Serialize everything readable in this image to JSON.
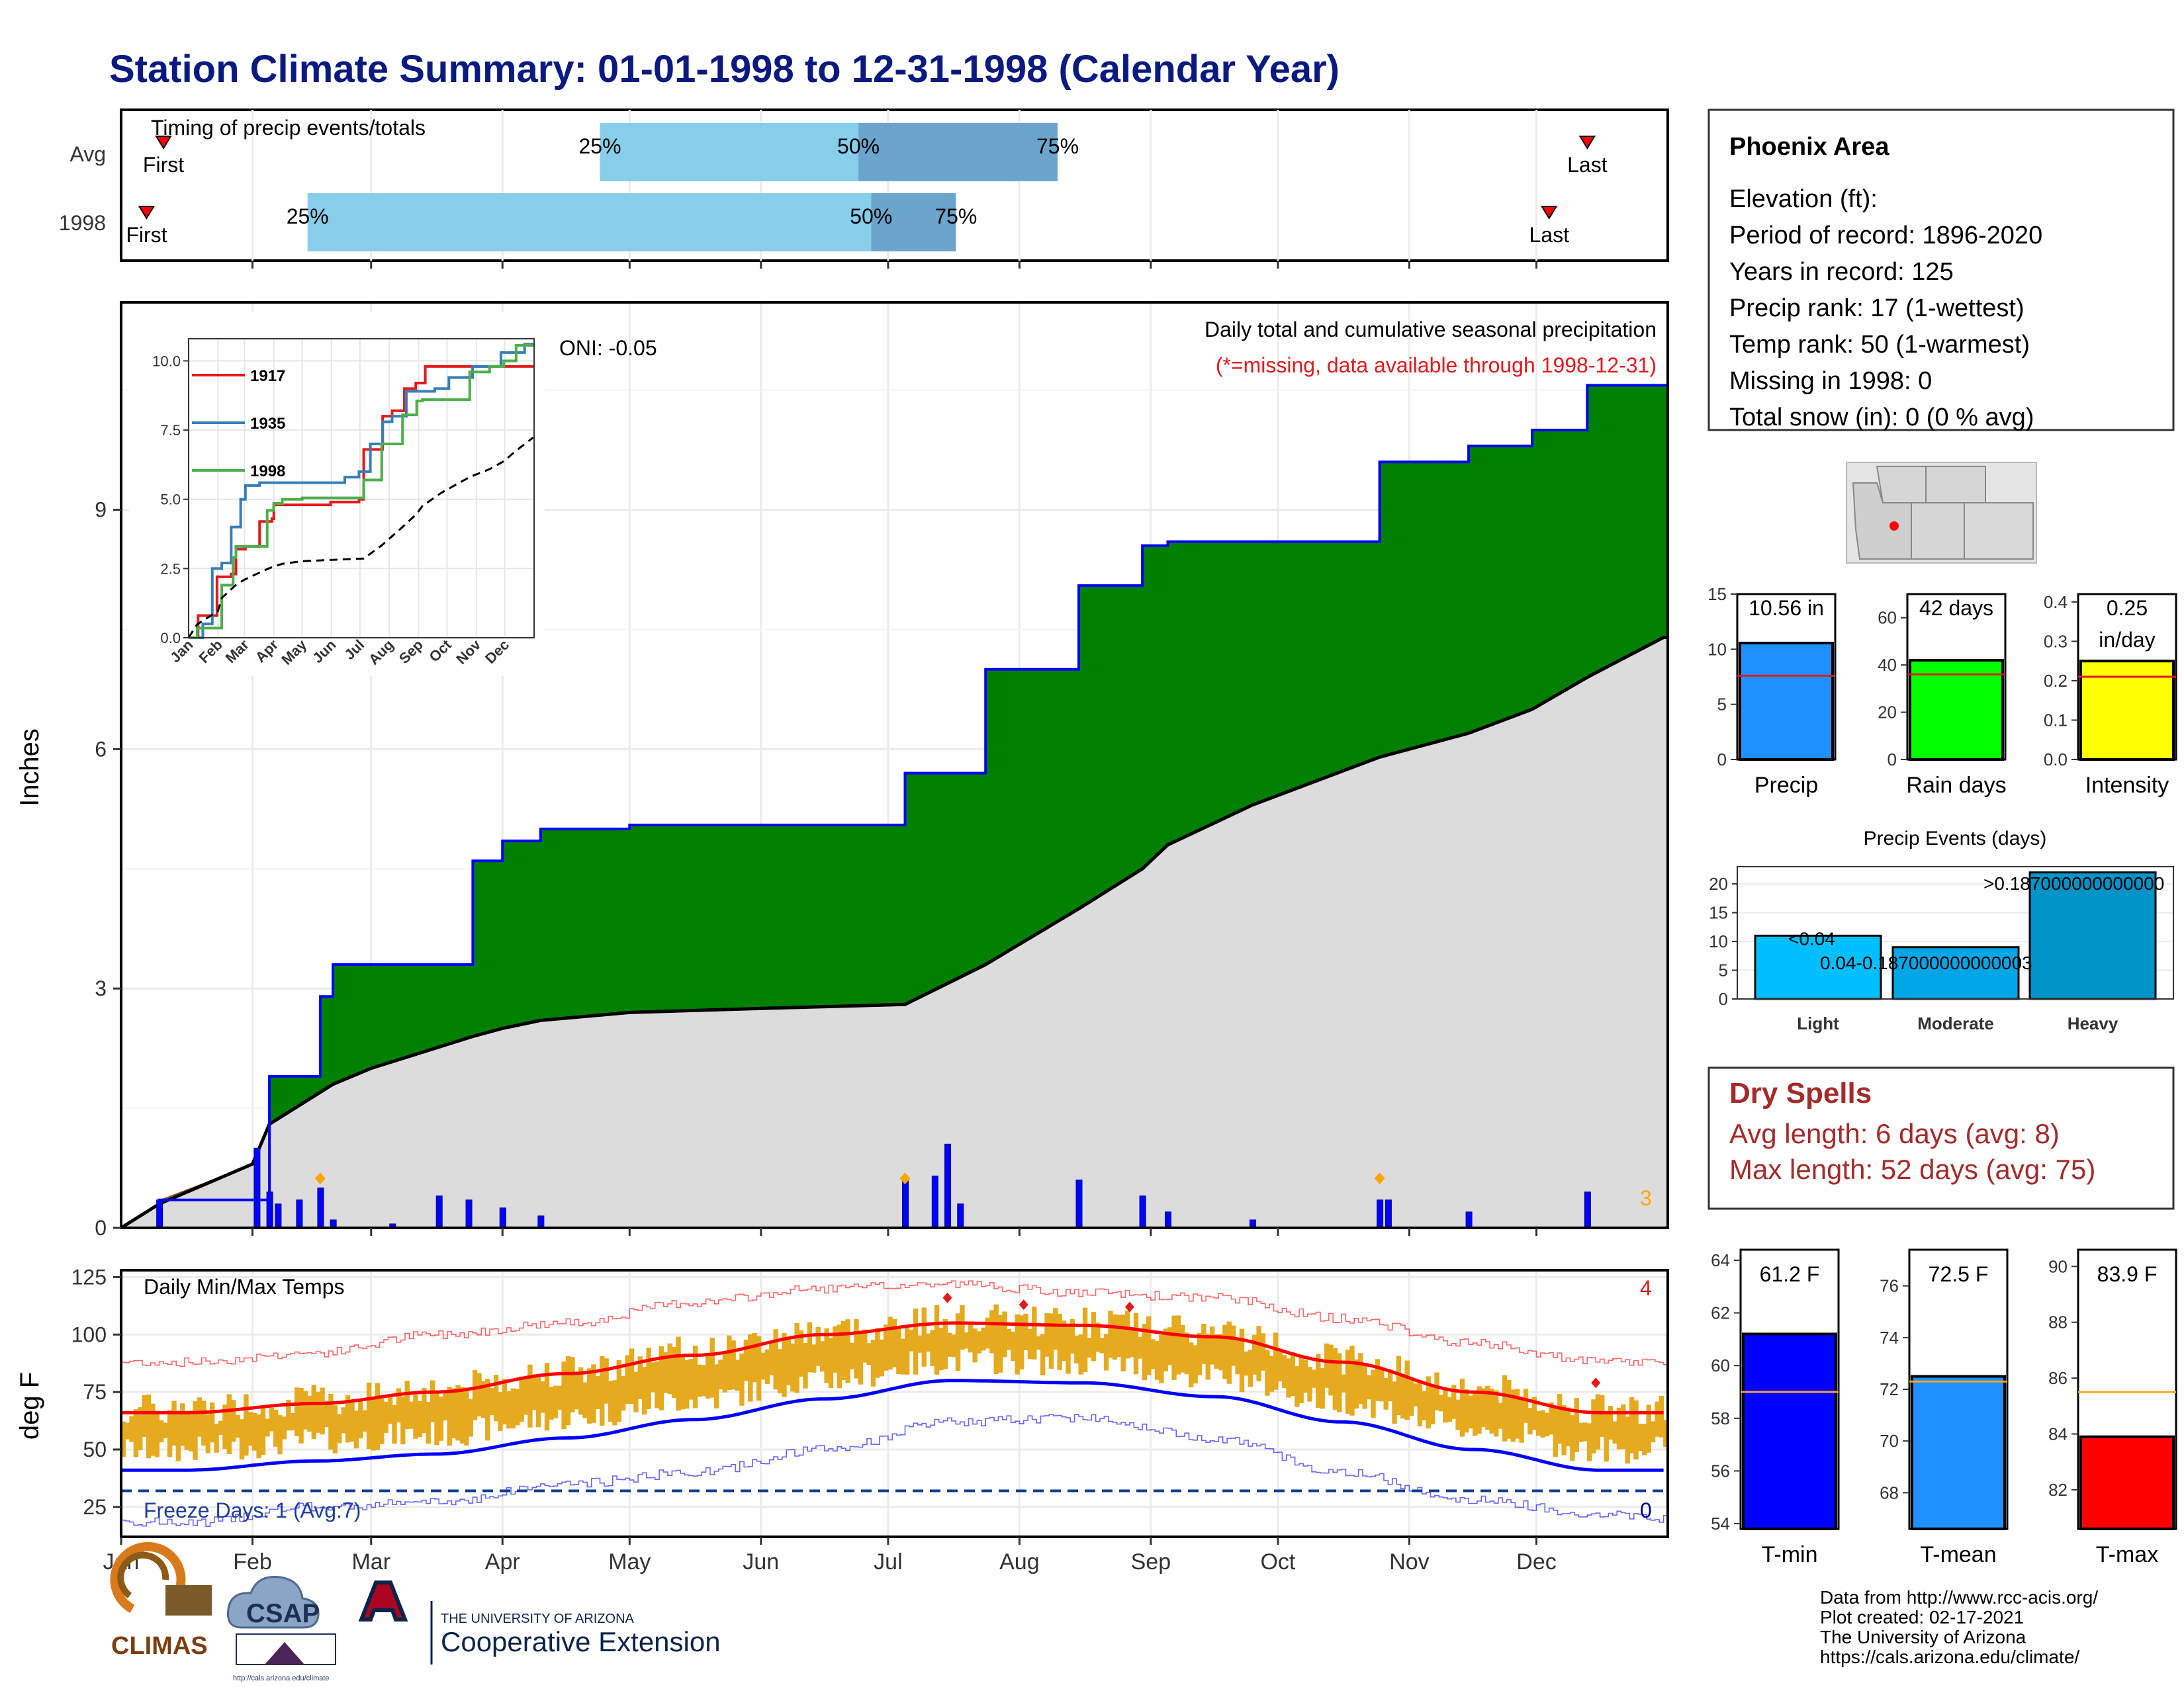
{
  "title": "Station Climate Summary: 01-01-1998 to 12-31-1998 (Calendar Year)",
  "timing": {
    "label": "Timing of precip events/totals",
    "rows": [
      {
        "name": "Avg",
        "p25": 113,
        "p50": 174,
        "p75": 221,
        "first": 10,
        "last": 346
      },
      {
        "name": "1998",
        "p25": 44,
        "p50": 177,
        "p75": 197,
        "first": 6,
        "last": 337
      }
    ],
    "pct": [
      "25%",
      "50%",
      "75%"
    ],
    "first_label": "First",
    "last_label": "Last"
  },
  "info": {
    "station": "Phoenix Area",
    "lines": [
      "Elevation (ft):",
      "Period of record: 1896-2020",
      "Years in record: 125",
      "Precip rank: 17 (1-wettest)",
      "Temp rank: 50 (1-warmest)",
      "Missing in 1998: 0",
      "Total snow (in): 0 (0 % avg)"
    ]
  },
  "precip": {
    "ylabel": "Inches",
    "yticks": [
      "0",
      "3",
      "6",
      "9"
    ],
    "header": "Daily total and cumulative seasonal precipitation",
    "missing_note": "(*=missing, data available through 1998-12-31)",
    "oni": "ONI: -0.05",
    "corner_count": "3",
    "colors": {
      "above": "#008000",
      "normal_fill": "#dcdcdc",
      "below": "#8b5a17",
      "line": "#0000ff"
    }
  },
  "inset": {
    "series": [
      "1917",
      "1935",
      "1998"
    ],
    "colors": [
      "#e31a1c",
      "#377eb8",
      "#4daf4a"
    ],
    "yticks": [
      "0.0",
      "2.5",
      "5.0",
      "7.5",
      "10.0"
    ],
    "xticks": [
      "Jan",
      "Feb",
      "Mar",
      "Apr",
      "May",
      "Jun",
      "Jul",
      "Aug",
      "Sep",
      "Oct",
      "Nov",
      "Dec"
    ]
  },
  "temps": {
    "label": "Daily Min/Max Temps",
    "ylabel": "deg F",
    "yticks": [
      "25",
      "50",
      "75",
      "100",
      "125"
    ],
    "freeze": "Freeze Days: 1 (Avg:7)",
    "count_hot": "4",
    "count_cold": "0"
  },
  "months": [
    "Jan",
    "Feb",
    "Mar",
    "Apr",
    "May",
    "Jun",
    "Jul",
    "Aug",
    "Sep",
    "Oct",
    "Nov",
    "Dec"
  ],
  "side_precip": {
    "bars": [
      {
        "name": "Precip",
        "label": "10.56 in",
        "value": 10.56,
        "avg": 7.6,
        "ymax": 15,
        "ticks": [
          "0",
          "5",
          "10",
          "15"
        ],
        "color": "#1e90ff"
      },
      {
        "name": "Rain days",
        "label": "42 days",
        "value": 42,
        "avg": 36,
        "ymax": 70,
        "ticks": [
          "0",
          "20",
          "40",
          "60"
        ],
        "color": "#00ff00"
      },
      {
        "name": "Intensity",
        "label": "0.25\nin/day",
        "value": 0.25,
        "avg": 0.21,
        "ymax": 0.42,
        "ticks": [
          "0.0",
          "0.1",
          "0.2",
          "0.3",
          "0.4"
        ],
        "color": "#ffff00"
      }
    ]
  },
  "events": {
    "title": "Precip Events (days)",
    "ticks": [
      "0",
      "5",
      "10",
      "15",
      "20"
    ],
    "bars": [
      {
        "name": "Light",
        "value": 11,
        "label": "<0.04"
      },
      {
        "name": "Moderate",
        "value": 9,
        "label": "0.04-0.187000000000003"
      },
      {
        "name": "Heavy",
        "value": 22,
        "label": ">0.187000000000000"
      }
    ]
  },
  "dry": {
    "title": "Dry Spells",
    "lines": [
      "Avg length: 6 days (avg: 8)",
      "Max length: 52 days (avg: 75)"
    ]
  },
  "side_temps": {
    "bars": [
      {
        "name": "T-min",
        "label": "61.2 F",
        "value": 61.2,
        "avg": 59.0,
        "ymin": 53.8,
        "ymax": 64.4,
        "ticks": [
          "54",
          "56",
          "58",
          "60",
          "62",
          "64"
        ],
        "color": "#0000ff"
      },
      {
        "name": "T-mean",
        "label": "72.5 F",
        "value": 72.5,
        "avg": 72.3,
        "ymin": 66.6,
        "ymax": 77.4,
        "ticks": [
          "68",
          "70",
          "72",
          "74",
          "76"
        ],
        "color": "#1e90ff"
      },
      {
        "name": "T-max",
        "label": "83.9 F",
        "value": 83.9,
        "avg": 85.5,
        "ymin": 80.6,
        "ymax": 90.6,
        "ticks": [
          "82",
          "84",
          "86",
          "88",
          "90"
        ],
        "color": "#ff0000"
      }
    ]
  },
  "logos": {
    "climas": "CLIMAS",
    "csap": "CSAP",
    "csap_url": "http://cals.arizona.edu/climate",
    "ua_line1": "THE UNIVERSITY OF ARIZONA",
    "ua_line2": "Cooperative Extension"
  },
  "credits": [
    "Data from http://www.rcc-acis.org/",
    "Plot created: 02-17-2021",
    "The University of Arizona",
    "https://cals.arizona.edu/climate/"
  ],
  "chart_data": [
    {
      "type": "area",
      "title": "Daily total and cumulative seasonal precipitation",
      "ylabel": "Inches",
      "ylim": [
        0,
        11.6
      ],
      "x": [
        "1998-01-01",
        "1998-01-10",
        "1998-02-01",
        "1998-02-05",
        "1998-02-11",
        "1998-02-17",
        "1998-02-20",
        "1998-03-01",
        "1998-03-25",
        "1998-04-01",
        "1998-04-10",
        "1998-05-01",
        "1998-06-01",
        "1998-07-05",
        "1998-07-24",
        "1998-08-15",
        "1998-08-30",
        "1998-09-05",
        "1998-09-25",
        "1998-10-25",
        "1998-11-15",
        "1998-11-30",
        "1998-12-13",
        "1998-12-31"
      ],
      "series": [
        {
          "name": "1998",
          "values": [
            0.0,
            0.35,
            0.35,
            1.9,
            1.9,
            2.9,
            3.3,
            3.3,
            4.6,
            4.85,
            5.0,
            5.05,
            5.05,
            5.7,
            7.0,
            8.05,
            8.55,
            8.6,
            8.6,
            9.6,
            9.8,
            10.0,
            10.56,
            10.56
          ]
        },
        {
          "name": "Average",
          "values": [
            0.0,
            0.3,
            0.8,
            1.3,
            1.5,
            1.7,
            1.8,
            2.0,
            2.4,
            2.5,
            2.6,
            2.7,
            2.75,
            2.8,
            3.3,
            4.0,
            4.5,
            4.8,
            5.3,
            5.9,
            6.2,
            6.5,
            6.9,
            7.4
          ]
        }
      ],
      "daily_bars": [
        [
          "01-10",
          0.35
        ],
        [
          "02-02",
          1.0
        ],
        [
          "02-05",
          0.45
        ],
        [
          "02-07",
          0.3
        ],
        [
          "02-12",
          0.35
        ],
        [
          "02-17",
          0.5
        ],
        [
          "02-20",
          0.1
        ],
        [
          "03-06",
          0.05
        ],
        [
          "03-17",
          0.4
        ],
        [
          "03-24",
          0.35
        ],
        [
          "04-01",
          0.25
        ],
        [
          "04-10",
          0.15
        ],
        [
          "07-05",
          0.6
        ],
        [
          "07-12",
          0.65
        ],
        [
          "07-15",
          1.05
        ],
        [
          "07-18",
          0.3
        ],
        [
          "08-15",
          0.6
        ],
        [
          "08-30",
          0.4
        ],
        [
          "09-05",
          0.2
        ],
        [
          "09-25",
          0.1
        ],
        [
          "10-25",
          0.35
        ],
        [
          "10-27",
          0.35
        ],
        [
          "11-15",
          0.2
        ],
        [
          "12-13",
          0.45
        ]
      ]
    },
    {
      "type": "line",
      "title": "Daily Min/Max Temps",
      "ylabel": "deg F",
      "ylim": [
        12,
        128
      ],
      "x": [
        "Jan",
        "Feb",
        "Mar",
        "Apr",
        "May",
        "Jun",
        "Jul",
        "Aug",
        "Sep",
        "Oct",
        "Nov",
        "Dec"
      ],
      "series": [
        {
          "name": "Normal max",
          "values": [
            66,
            70,
            75,
            83,
            91,
            100,
            105,
            104,
            99,
            88,
            75,
            66
          ]
        },
        {
          "name": "Normal min",
          "values": [
            41,
            45,
            48,
            55,
            63,
            72,
            80,
            79,
            73,
            62,
            50,
            41
          ]
        },
        {
          "name": "Record max",
          "values": [
            88,
            92,
            100,
            105,
            114,
            120,
            122,
            118,
            116,
            107,
            96,
            88
          ]
        },
        {
          "name": "Record min",
          "values": [
            18,
            25,
            27,
            35,
            40,
            50,
            62,
            64,
            55,
            40,
            28,
            22
          ]
        }
      ],
      "freeze_line": 32
    },
    {
      "type": "bar",
      "title": "Precip Events (days)",
      "categories": [
        "Light",
        "Moderate",
        "Heavy"
      ],
      "values": [
        11,
        9,
        22
      ]
    },
    {
      "type": "bar",
      "categories": [
        "T-min",
        "T-mean",
        "T-max"
      ],
      "values": [
        61.2,
        72.5,
        83.9
      ]
    }
  ]
}
